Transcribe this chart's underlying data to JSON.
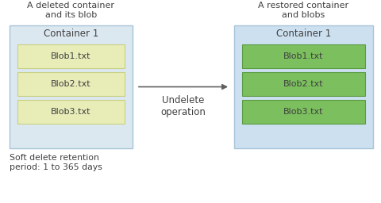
{
  "title_left": "A deleted container\nand its blob",
  "title_right": "A restored container\nand blobs",
  "container_label": "Container 1",
  "blobs": [
    "Blob1.txt",
    "Blob2.txt",
    "Blob3.txt"
  ],
  "arrow_label": "Undelete\noperation",
  "footer_text": "Soft delete retention\nperiod: 1 to 365 days",
  "bg_color": "#ffffff",
  "container_bg_left": "#dce8f0",
  "container_bg_right": "#cce0f0",
  "blob_color_left": "#e8edb8",
  "blob_color_right": "#7bbf5e",
  "blob_border_left": "#c8d080",
  "blob_border_right": "#5a9a40",
  "container_border": "#a8c4d8",
  "text_color": "#404040",
  "title_fontsize": 8.0,
  "label_fontsize": 8.5,
  "blob_fontsize": 8.0,
  "footer_fontsize": 7.8,
  "arrow_color": "#606060"
}
